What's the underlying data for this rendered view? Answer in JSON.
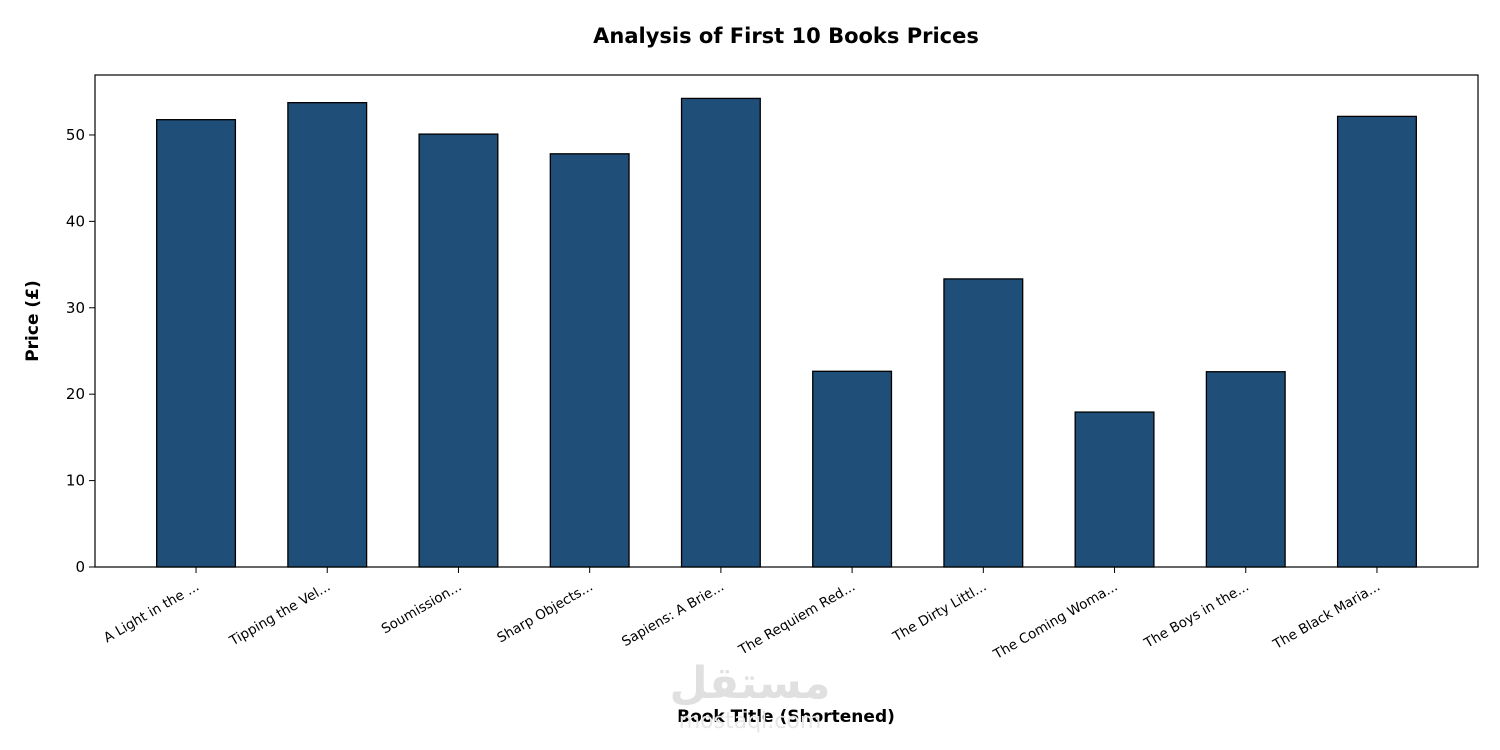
{
  "chart_data": {
    "type": "bar",
    "title": "Analysis of First 10 Books Prices",
    "x_label": "Book Title (Shortened)",
    "y_label": "Price (£)",
    "categories": [
      "A Light in the ...",
      "Tipping the Vel...",
      "Soumission...",
      "Sharp Objects...",
      "Sapiens: A Brie...",
      "The Requiem Red...",
      "The Dirty Littl...",
      "The Coming Woma...",
      "The Boys in the...",
      "The Black Maria..."
    ],
    "values": [
      51.77,
      53.74,
      50.1,
      47.82,
      54.23,
      22.65,
      33.34,
      17.93,
      22.6,
      52.15
    ],
    "color": "#1f4e79",
    "edge_color": "#000000",
    "ylim": [
      0,
      56.94
    ],
    "yticks": [
      0,
      10,
      20,
      30,
      40,
      50
    ],
    "grid": false,
    "watermark": [
      "مستقل",
      "mostaql.com"
    ]
  }
}
